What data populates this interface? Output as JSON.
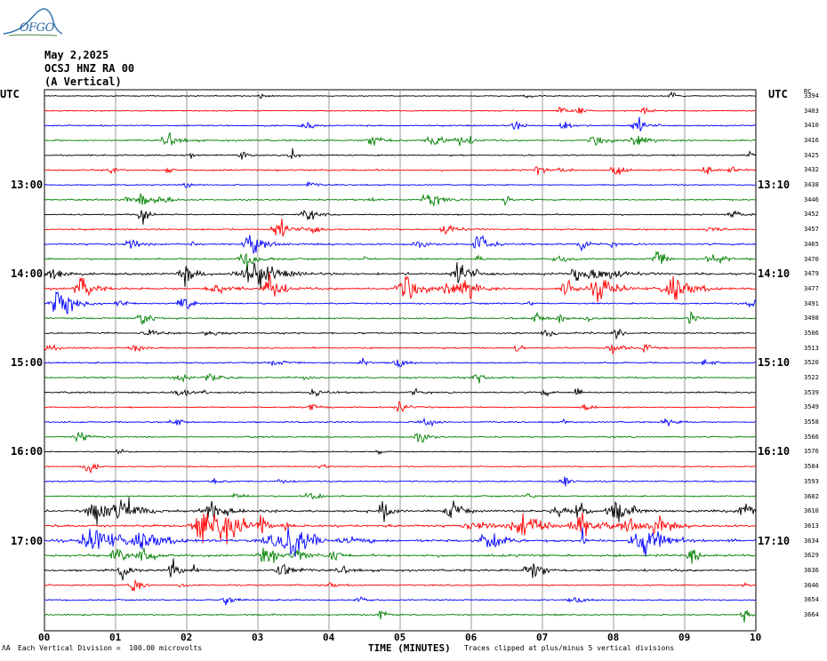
{
  "logo": {
    "text": "OFGO",
    "icon": "volcano-outline-icon",
    "color": "#2a6aa8"
  },
  "header": {
    "date": "May 2,2025",
    "channel": "OCSJ HNZ RA 00",
    "component": "(A Vertical)"
  },
  "footer": {
    "scale_note": "Each Vertical Division =  100.00 microvolts",
    "clip_note": "Traces clipped at plus/minus 5 vertical divisions",
    "corner_mark": "ɅA"
  },
  "chart_data": {
    "type": "line",
    "title": "",
    "xlabel": "TIME (MINUTES)",
    "ylabel": "",
    "xlim": [
      0,
      10
    ],
    "x_ticks": [
      "00",
      "01",
      "02",
      "03",
      "04",
      "05",
      "06",
      "07",
      "08",
      "09",
      "10"
    ],
    "grid": true,
    "utc_left_label": "UTC",
    "utc_right_label": "UTC",
    "left_time_labels": [
      {
        "label": "13:00",
        "trace_index": 6
      },
      {
        "label": "14:00",
        "trace_index": 12
      },
      {
        "label": "15:00",
        "trace_index": 18
      },
      {
        "label": "16:00",
        "trace_index": 24
      },
      {
        "label": "17:00",
        "trace_index": 30
      }
    ],
    "right_time_labels": [
      {
        "label": "13:10",
        "trace_index": 6
      },
      {
        "label": "14:10",
        "trace_index": 12
      },
      {
        "label": "15:10",
        "trace_index": 18
      },
      {
        "label": "16:10",
        "trace_index": 24
      },
      {
        "label": "17:10",
        "trace_index": 30
      }
    ],
    "station_header": "RC",
    "trace_colors": [
      "#000000",
      "#ff0000",
      "#0000ff",
      "#008000"
    ],
    "station_numbers": [
      "3394",
      "3403",
      "3410",
      "3416",
      "3425",
      "3432",
      "3438",
      "3446",
      "3452",
      "3457",
      "3465",
      "3470",
      "3479",
      "3477",
      "3491",
      "3498",
      "3506",
      "3513",
      "3520",
      "3522",
      "3539",
      "3549",
      "3558",
      "3566",
      "3576",
      "3584",
      "3593",
      "3602",
      "3610",
      "3613",
      "3634",
      "3629",
      "3636",
      "3646",
      "3654",
      "3664"
    ],
    "trace_activity": [
      0.15,
      0.2,
      0.35,
      0.45,
      0.3,
      0.5,
      0.25,
      0.4,
      0.3,
      0.45,
      0.55,
      0.5,
      0.8,
      0.75,
      0.45,
      0.4,
      0.45,
      0.35,
      0.4,
      0.5,
      0.45,
      0.3,
      0.35,
      0.35,
      0.15,
      0.2,
      0.3,
      0.4,
      0.8,
      0.9,
      0.95,
      0.85,
      0.7,
      0.35,
      0.3,
      0.35
    ]
  }
}
